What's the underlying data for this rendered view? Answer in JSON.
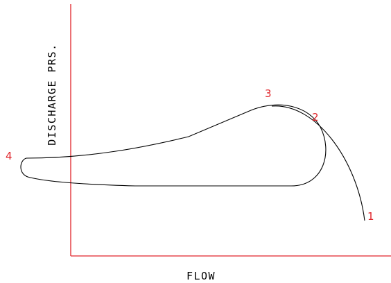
{
  "diagram": {
    "xlabel": "FLOW",
    "ylabel": "DISCHARGE PRS.",
    "points": [
      {
        "id": "p1",
        "label": "1"
      },
      {
        "id": "p2",
        "label": "2"
      },
      {
        "id": "p3",
        "label": "3"
      },
      {
        "id": "p4",
        "label": "4"
      }
    ],
    "colors": {
      "axes": "#e0242a",
      "point_labels": "#e0242a",
      "curve": "#000000",
      "text": "#000000"
    }
  }
}
